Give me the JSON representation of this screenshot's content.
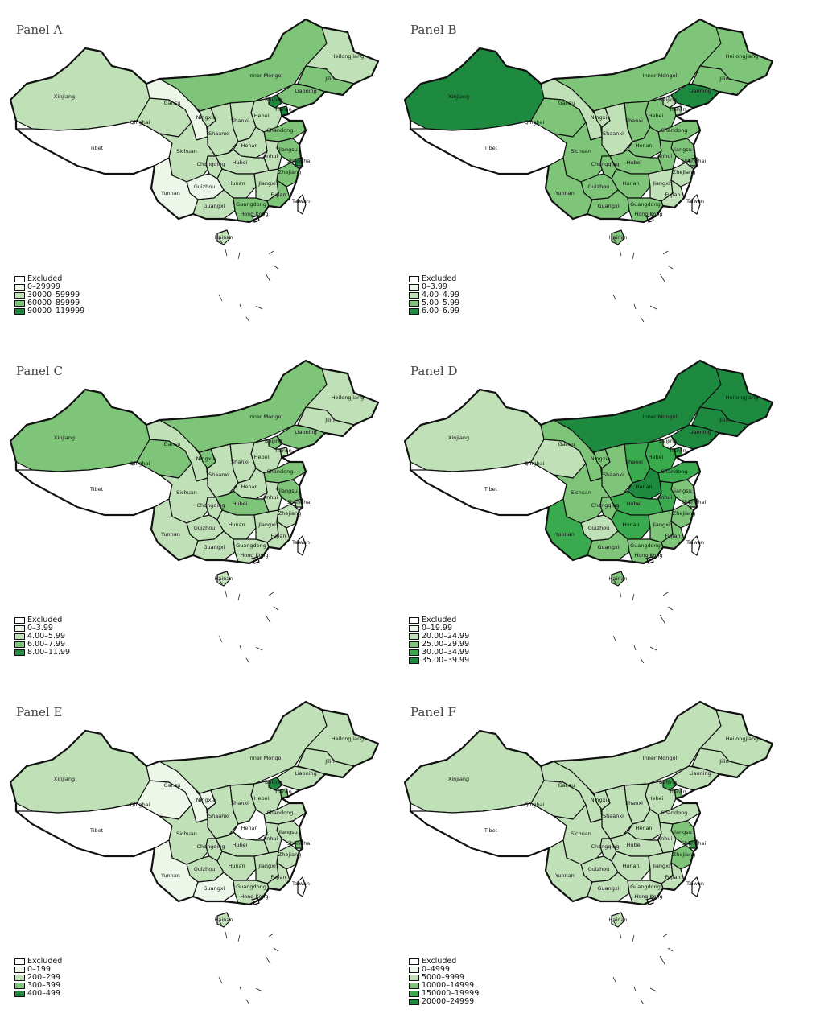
{
  "colors": [
    "#ffffff",
    "#ecf6e9",
    "#c0e0b8",
    "#7ec57a",
    "#3aaa4e",
    "#1d8a40"
  ],
  "province_labels": [
    "Xinjiang",
    "Tibet",
    "Qinghai",
    "Gansu",
    "Ningxia",
    "Inner Mongol",
    "Heilongjiang",
    "Jilin",
    "Liaoning",
    "Beijing",
    "Tianjin",
    "Hebei",
    "Shanxi",
    "Shaanxi",
    "Shandong",
    "Henan",
    "Jiangsu",
    "Anhui",
    "Shanghai",
    "Hubei",
    "Sichuan",
    "Chongqing",
    "Zhejiang",
    "Hunan",
    "Jiangxi",
    "Guizhou",
    "Fujian",
    "Taiwan",
    "Yunnan",
    "Guangxi",
    "Guangdong",
    "Hong Kong",
    "Hainan"
  ],
  "panels": [
    {
      "title": "Panel A",
      "legend": [
        "Excluded",
        "0–29999",
        "30000–59999",
        "60000–89999",
        "90000–119999"
      ],
      "values": {
        "Xinjiang": 2,
        "Tibet": 0,
        "Qinghai": 2,
        "Gansu": 1,
        "Ningxia": 2,
        "Inner Mongol": 3,
        "Heilongjiang": 2,
        "Jilin": 3,
        "Liaoning": 3,
        "Beijing": 4,
        "Tianjin": 4,
        "Hebei": 2,
        "Shanxi": 2,
        "Shaanxi": 2,
        "Shandong": 3,
        "Henan": 2,
        "Jiangsu": 3,
        "Anhui": 2,
        "Shanghai": 4,
        "Hubei": 2,
        "Sichuan": 2,
        "Chongqing": 2,
        "Zhejiang": 3,
        "Hunan": 2,
        "Jiangxi": 2,
        "Guizhou": 1,
        "Fujian": 3,
        "Taiwan": 0,
        "Yunnan": 1,
        "Guangxi": 2,
        "Guangdong": 3,
        "Hong Kong": 0,
        "Hainan": 2
      }
    },
    {
      "title": "Panel B",
      "legend": [
        "Excluded",
        "0–3.99",
        "4.00–4.99",
        "5.00–5.99",
        "6.00–6.99"
      ],
      "values": {
        "Xinjiang": 4,
        "Tibet": 0,
        "Qinghai": 3,
        "Gansu": 2,
        "Ningxia": 2,
        "Inner Mongol": 3,
        "Heilongjiang": 3,
        "Jilin": 3,
        "Liaoning": 4,
        "Beijing": 2,
        "Tianjin": 2,
        "Hebei": 3,
        "Shanxi": 3,
        "Shaanxi": 2,
        "Shandong": 3,
        "Henan": 3,
        "Jiangsu": 3,
        "Anhui": 3,
        "Shanghai": 3,
        "Hubei": 3,
        "Sichuan": 3,
        "Chongqing": 3,
        "Zhejiang": 2,
        "Hunan": 3,
        "Jiangxi": 2,
        "Guizhou": 3,
        "Fujian": 2,
        "Taiwan": 0,
        "Yunnan": 3,
        "Guangxi": 3,
        "Guangdong": 3,
        "Hong Kong": 0,
        "Hainan": 3
      }
    },
    {
      "title": "Panel C",
      "legend": [
        "Excluded",
        "0–3.99",
        "4.00–5.99",
        "6.00–7.99",
        "8.00–11.99"
      ],
      "values": {
        "Xinjiang": 3,
        "Tibet": 0,
        "Qinghai": 3,
        "Gansu": 2,
        "Ningxia": 3,
        "Inner Mongol": 3,
        "Heilongjiang": 2,
        "Jilin": 2,
        "Liaoning": 3,
        "Beijing": 3,
        "Tianjin": 2,
        "Hebei": 2,
        "Shanxi": 2,
        "Shaanxi": 2,
        "Shandong": 3,
        "Henan": 2,
        "Jiangsu": 3,
        "Anhui": 2,
        "Shanghai": 2,
        "Hubei": 3,
        "Sichuan": 2,
        "Chongqing": 2,
        "Zhejiang": 2,
        "Hunan": 2,
        "Jiangxi": 2,
        "Guizhou": 2,
        "Fujian": 2,
        "Taiwan": 0,
        "Yunnan": 2,
        "Guangxi": 2,
        "Guangdong": 2,
        "Hong Kong": 0,
        "Hainan": 2
      }
    },
    {
      "title": "Panel D",
      "legend": [
        "Excluded",
        "0–19.99",
        "20.00–24.99",
        "25.00–29.99",
        "30.00–34.99",
        "35.00–39.99"
      ],
      "values": {
        "Xinjiang": 2,
        "Tibet": 0,
        "Qinghai": 2,
        "Gansu": 3,
        "Ningxia": 3,
        "Inner Mongol": 5,
        "Heilongjiang": 5,
        "Jilin": 5,
        "Liaoning": 5,
        "Beijing": 1,
        "Tianjin": 4,
        "Hebei": 4,
        "Shanxi": 4,
        "Shaanxi": 3,
        "Shandong": 4,
        "Henan": 5,
        "Jiangsu": 3,
        "Anhui": 4,
        "Shanghai": 3,
        "Hubei": 4,
        "Sichuan": 3,
        "Chongqing": 3,
        "Zhejiang": 3,
        "Hunan": 4,
        "Jiangxi": 3,
        "Guizhou": 2,
        "Fujian": 3,
        "Taiwan": 0,
        "Yunnan": 4,
        "Guangxi": 3,
        "Guangdong": 3,
        "Hong Kong": 0,
        "Hainan": 3
      }
    },
    {
      "title": "Panel E",
      "legend": [
        "Excluded",
        "0–199",
        "200–299",
        "300–399",
        "400–499"
      ],
      "values": {
        "Xinjiang": 2,
        "Tibet": 0,
        "Qinghai": 1,
        "Gansu": 1,
        "Ningxia": 1,
        "Inner Mongol": 2,
        "Heilongjiang": 2,
        "Jilin": 2,
        "Liaoning": 2,
        "Beijing": 4,
        "Tianjin": 3,
        "Hebei": 2,
        "Shanxi": 2,
        "Shaanxi": 2,
        "Shandong": 2,
        "Henan": 0,
        "Jiangsu": 2,
        "Anhui": 2,
        "Shanghai": 3,
        "Hubei": 2,
        "Sichuan": 2,
        "Chongqing": 2,
        "Zhejiang": 2,
        "Hunan": 2,
        "Jiangxi": 2,
        "Guizhou": 2,
        "Fujian": 2,
        "Taiwan": 0,
        "Yunnan": 1,
        "Guangxi": 1,
        "Guangdong": 2,
        "Hong Kong": 0,
        "Hainan": 2
      }
    },
    {
      "title": "Panel F",
      "legend": [
        "Excluded",
        "0–4999",
        "5000–9999",
        "10000–14999",
        "150000–19999",
        "20000–24999"
      ],
      "values": {
        "Xinjiang": 2,
        "Tibet": 0,
        "Qinghai": 2,
        "Gansu": 2,
        "Ningxia": 2,
        "Inner Mongol": 2,
        "Heilongjiang": 2,
        "Jilin": 2,
        "Liaoning": 2,
        "Beijing": 4,
        "Tianjin": 3,
        "Hebei": 2,
        "Shanxi": 2,
        "Shaanxi": 2,
        "Shandong": 2,
        "Henan": 2,
        "Jiangsu": 3,
        "Anhui": 2,
        "Shanghai": 4,
        "Hubei": 2,
        "Sichuan": 2,
        "Chongqing": 2,
        "Zhejiang": 3,
        "Hunan": 2,
        "Jiangxi": 2,
        "Guizhou": 2,
        "Fujian": 2,
        "Taiwan": 0,
        "Yunnan": 2,
        "Guangxi": 2,
        "Guangdong": 2,
        "Hong Kong": 0,
        "Hainan": 2
      }
    }
  ]
}
